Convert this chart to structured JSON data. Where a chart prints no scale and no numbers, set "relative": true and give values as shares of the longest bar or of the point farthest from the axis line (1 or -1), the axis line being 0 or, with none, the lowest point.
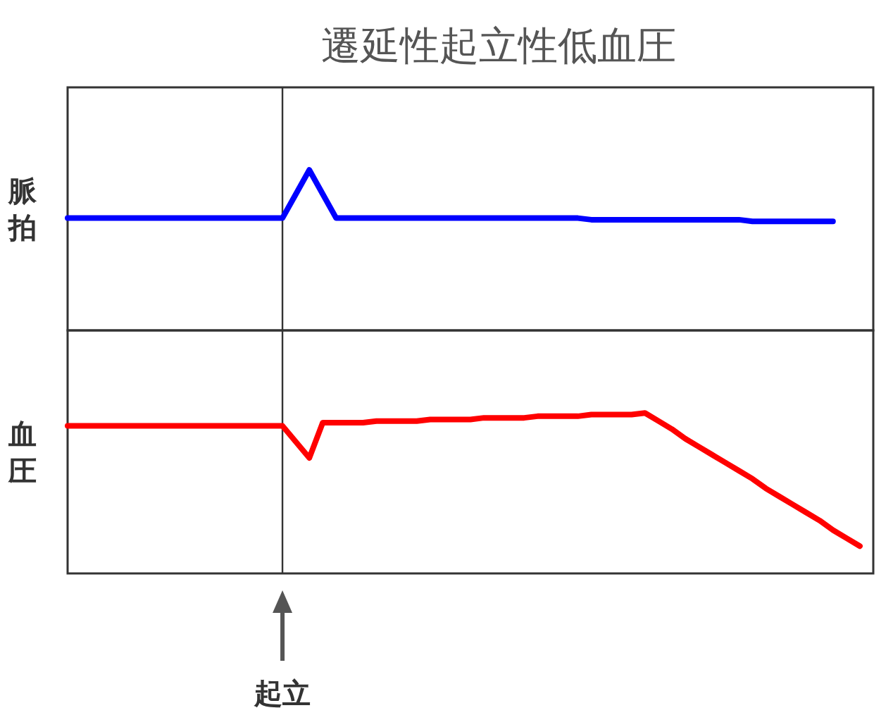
{
  "chart_data": [
    {
      "type": "line",
      "title": "遷延性起立性低血圧",
      "ylabel": "脈拍",
      "relative": true,
      "categories": [
        null,
        null,
        null,
        null,
        null,
        null,
        null,
        null,
        null,
        null,
        null,
        null,
        null,
        null,
        null,
        null,
        null,
        null,
        null,
        null,
        null,
        null,
        null,
        null,
        null,
        null,
        null,
        null,
        null,
        null,
        null,
        null,
        null,
        null,
        null,
        null,
        null,
        null,
        null,
        null,
        null,
        null,
        null,
        null,
        null,
        null,
        null,
        null,
        null,
        null,
        null,
        null,
        null,
        null,
        null,
        null,
        null,
        null,
        null,
        null,
        null
      ],
      "series": [
        {
          "color": "#0000ff",
          "values": [
            0.7,
            0.7,
            0.7,
            0.7,
            0.7,
            0.7,
            0.7,
            0.7,
            0.7,
            0.7,
            0.7,
            0.7,
            0.7,
            0.7,
            0.7,
            0.7,
            0.7,
            0.85,
            1.0,
            0.85,
            0.7,
            0.7,
            0.7,
            0.7,
            0.7,
            0.7,
            0.7,
            0.7,
            0.7,
            0.7,
            0.7,
            0.7,
            0.7,
            0.7,
            0.7,
            0.7,
            0.7,
            0.7,
            0.7,
            0.69,
            0.69,
            0.69,
            0.69,
            0.69,
            0.69,
            0.69,
            0.69,
            0.69,
            0.69,
            0.69,
            0.69,
            0.68,
            0.68,
            0.68,
            0.68,
            0.68,
            0.68,
            0.68,
            null,
            null,
            null
          ]
        }
      ]
    },
    {
      "type": "line",
      "ylabel": "血圧",
      "relative": true,
      "categories": [
        null,
        null,
        null,
        null,
        null,
        null,
        null,
        null,
        null,
        null,
        null,
        null,
        null,
        null,
        null,
        null,
        null,
        null,
        null,
        null,
        null,
        null,
        null,
        null,
        null,
        null,
        null,
        null,
        null,
        null,
        null,
        null,
        null,
        null,
        null,
        null,
        null,
        null,
        null,
        null,
        null,
        null,
        null,
        null,
        null,
        null,
        null,
        null,
        null,
        null,
        null,
        null,
        null,
        null,
        null,
        null,
        null,
        null,
        null,
        null,
        null
      ],
      "series": [
        {
          "color": "#ff0000",
          "values": [
            0.92,
            0.92,
            0.92,
            0.92,
            0.92,
            0.92,
            0.92,
            0.92,
            0.92,
            0.92,
            0.92,
            0.92,
            0.92,
            0.92,
            0.92,
            0.92,
            0.92,
            0.82,
            0.72,
            0.94,
            0.94,
            0.94,
            0.94,
            0.95,
            0.95,
            0.95,
            0.95,
            0.96,
            0.96,
            0.96,
            0.96,
            0.97,
            0.97,
            0.97,
            0.97,
            0.98,
            0.98,
            0.98,
            0.98,
            0.99,
            0.99,
            0.99,
            0.99,
            1.0,
            0.95,
            0.9,
            0.84,
            0.79,
            0.74,
            0.69,
            0.64,
            0.59,
            0.53,
            0.48,
            0.43,
            0.38,
            0.33,
            0.27,
            0.22,
            0.17,
            null
          ]
        }
      ],
      "annotations": [
        "起立"
      ]
    }
  ]
}
